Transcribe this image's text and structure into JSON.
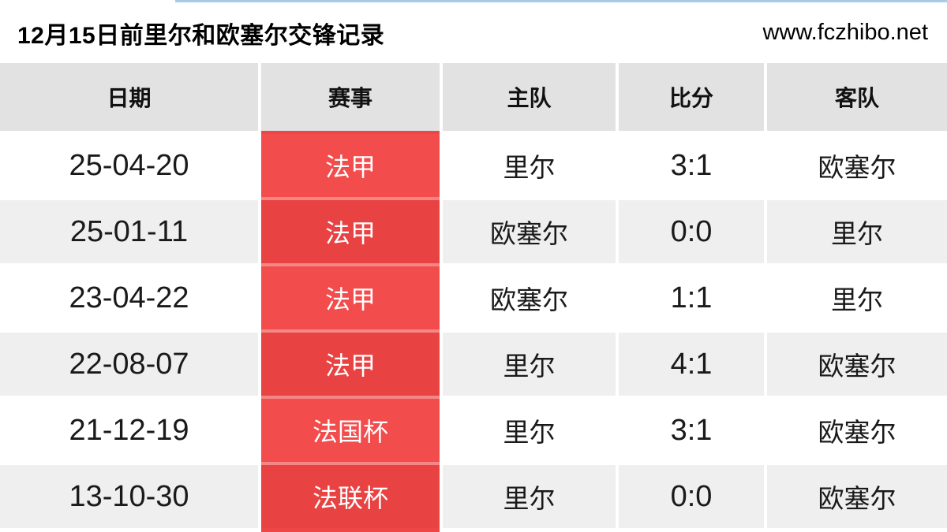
{
  "page": {
    "title": "12月15日前里尔和欧塞尔交锋记录",
    "watermark": "www.fczhibo.net"
  },
  "colors": {
    "accent_red": "#ee4646",
    "badge_red_odd": "#f24c4c",
    "badge_red_even": "#e84242",
    "header_bg": "#e2e2e2",
    "row_alt_bg": "#efefef",
    "topline_blue": "#a8cbe8"
  },
  "table": {
    "columns": [
      "日期",
      "赛事",
      "主队",
      "比分",
      "客队"
    ],
    "rows": [
      {
        "date": "25-04-20",
        "competition": "法甲",
        "home": "里尔",
        "score": "3:1",
        "away": "欧塞尔"
      },
      {
        "date": "25-01-11",
        "competition": "法甲",
        "home": "欧塞尔",
        "score": "0:0",
        "away": "里尔"
      },
      {
        "date": "23-04-22",
        "competition": "法甲",
        "home": "欧塞尔",
        "score": "1:1",
        "away": "里尔"
      },
      {
        "date": "22-08-07",
        "competition": "法甲",
        "home": "里尔",
        "score": "4:1",
        "away": "欧塞尔"
      },
      {
        "date": "21-12-19",
        "competition": "法国杯",
        "home": "里尔",
        "score": "3:1",
        "away": "欧塞尔"
      },
      {
        "date": "13-10-30",
        "competition": "法联杯",
        "home": "里尔",
        "score": "0:0",
        "away": "欧塞尔"
      }
    ]
  }
}
